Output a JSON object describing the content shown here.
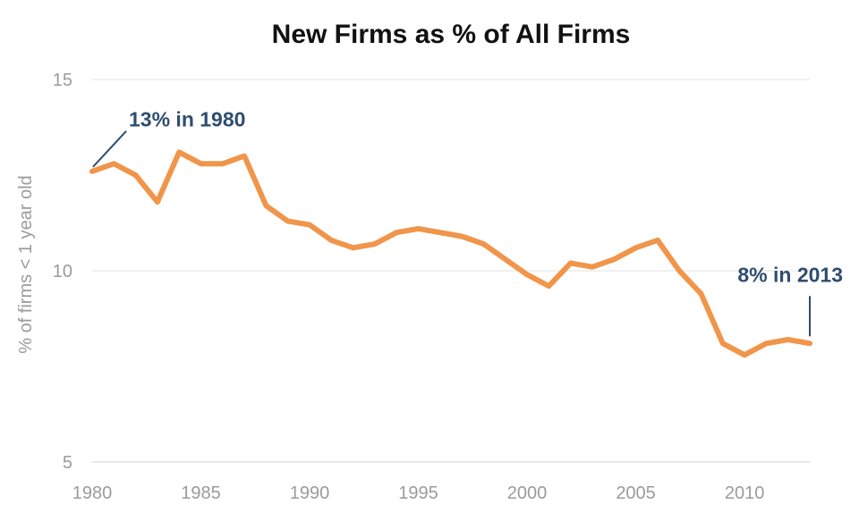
{
  "chart_data": {
    "type": "line",
    "title": "New Firms as % of All Firms",
    "xlabel": "",
    "ylabel": "% of firms < 1 year old",
    "xlim": [
      1980,
      2013
    ],
    "ylim": [
      5,
      15
    ],
    "xticks": [
      1980,
      1985,
      1990,
      1995,
      2000,
      2005,
      2010
    ],
    "yticks": [
      5,
      10,
      15
    ],
    "grid": "horizontal",
    "line_color": "#f0954a",
    "annotation_color": "#2f4d70",
    "series": [
      {
        "x": [
          1980,
          1981,
          1982,
          1983,
          1984,
          1985,
          1986,
          1987,
          1988,
          1989,
          1990,
          1991,
          1992,
          1993,
          1994,
          1995,
          1996,
          1997,
          1998,
          1999,
          2000,
          2001,
          2002,
          2003,
          2004,
          2005,
          2006,
          2007,
          2008,
          2009,
          2010,
          2011,
          2012,
          2013
        ],
        "values": [
          12.6,
          12.8,
          12.5,
          11.8,
          13.1,
          12.8,
          12.8,
          13.0,
          11.7,
          11.3,
          11.2,
          10.8,
          10.6,
          10.7,
          11.0,
          11.1,
          11.0,
          10.9,
          10.7,
          10.3,
          9.9,
          9.6,
          10.2,
          10.1,
          10.3,
          10.6,
          10.8,
          10.0,
          9.4,
          8.1,
          7.8,
          8.1,
          8.2,
          8.1
        ]
      }
    ],
    "annotations": [
      {
        "text": "13% in 1980",
        "x": 1980,
        "y": 12.6
      },
      {
        "text": "8% in 2013",
        "x": 2013,
        "y": 8.1
      }
    ]
  }
}
